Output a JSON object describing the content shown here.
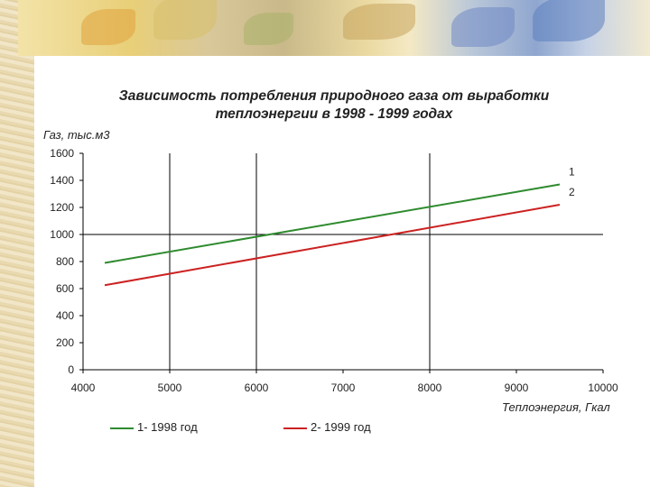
{
  "chart_data": {
    "type": "line",
    "title": "Зависимость потребления природного газа от выработки теплоэнергии в 1998 - 1999 годах",
    "ylabel": "Газ, тыс.м3",
    "xlabel": "Теплоэнергия, Гкал",
    "xlim": [
      4000,
      10000
    ],
    "ylim": [
      0,
      1600
    ],
    "x_ticks": [
      "4000",
      "5000",
      "6000",
      "7000",
      "8000",
      "9000",
      "10000"
    ],
    "y_ticks": [
      "0",
      "200",
      "400",
      "600",
      "800",
      "1000",
      "1200",
      "1400",
      "1600"
    ],
    "series": [
      {
        "name": "1- 1998 год",
        "label": "1",
        "color": "#2e8b2e",
        "x": [
          4250,
          9500
        ],
        "y": [
          790,
          1370
        ]
      },
      {
        "name": "2- 1999 год",
        "label": "2",
        "color": "#cc2222",
        "x": [
          4250,
          9500
        ],
        "y": [
          625,
          1220
        ]
      }
    ],
    "reference_lines": {
      "x": [
        5000,
        6000,
        8000
      ],
      "y": [
        1000
      ]
    }
  }
}
